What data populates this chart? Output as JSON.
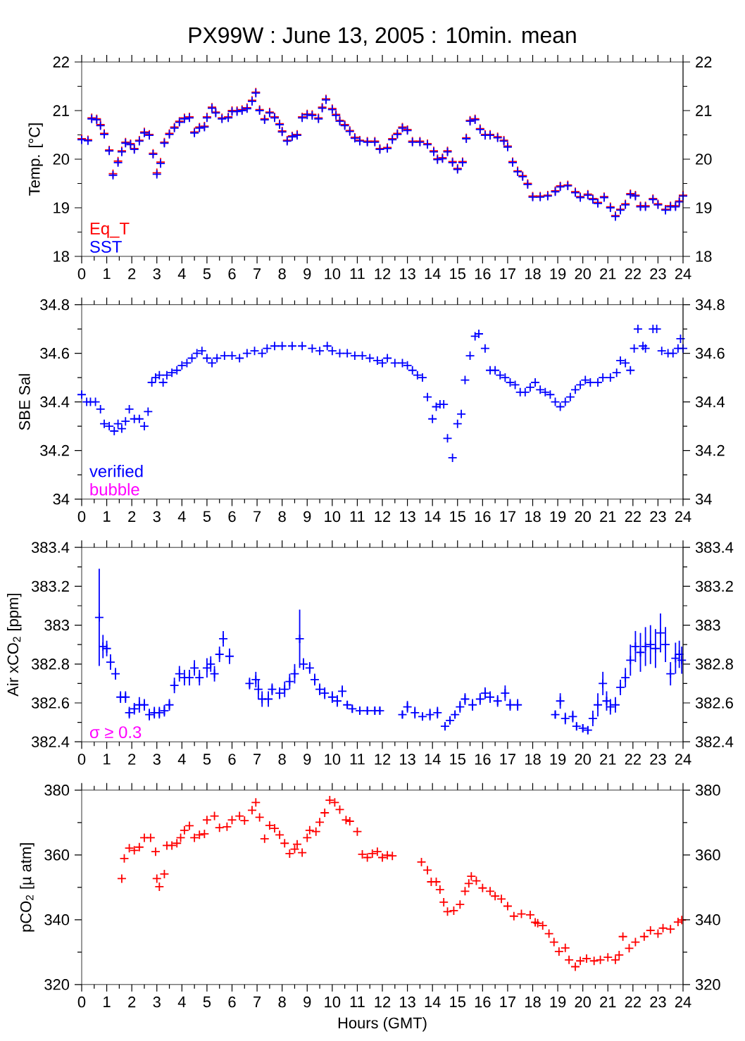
{
  "chart_data": [
    {
      "type": "scatter",
      "title": "PX99W : June 13, 2005 : 10min. mean",
      "ylabel": "Temp. [°C]",
      "marker": "cross",
      "legend": "bottom left",
      "xlim": [
        0,
        24
      ],
      "xticks": [
        0,
        1,
        2,
        3,
        4,
        5,
        6,
        7,
        8,
        9,
        10,
        11,
        12,
        13,
        14,
        15,
        16,
        17,
        18,
        19,
        20,
        21,
        22,
        23,
        24
      ],
      "ylim": [
        18,
        22
      ],
      "yticks": [
        18,
        19,
        20,
        21,
        22
      ],
      "y2lim": [
        18,
        22
      ],
      "y2ticks": [
        18,
        19,
        20,
        21,
        22
      ],
      "x": [
        0,
        0.25,
        0.4,
        0.6,
        0.75,
        0.9,
        1.1,
        1.25,
        1.45,
        1.6,
        1.75,
        1.95,
        2.1,
        2.3,
        2.5,
        2.7,
        2.85,
        3.0,
        3.15,
        3.3,
        3.5,
        3.7,
        3.9,
        4.1,
        4.3,
        4.5,
        4.7,
        4.9,
        5.0,
        5.2,
        5.35,
        5.6,
        5.85,
        6.0,
        6.2,
        6.4,
        6.6,
        6.8,
        6.95,
        7.1,
        7.3,
        7.5,
        7.7,
        7.9,
        8.0,
        8.2,
        8.4,
        8.6,
        8.8,
        9.0,
        9.2,
        9.45,
        9.6,
        9.75,
        10.0,
        10.15,
        10.3,
        10.5,
        10.7,
        10.9,
        11.1,
        11.4,
        11.7,
        11.9,
        12.2,
        12.4,
        12.6,
        12.8,
        13.0,
        13.2,
        13.5,
        13.8,
        14.05,
        14.2,
        14.4,
        14.6,
        14.8,
        15.0,
        15.2,
        15.35,
        15.5,
        15.7,
        15.9,
        16.1,
        16.3,
        16.6,
        16.85,
        17.0,
        17.2,
        17.4,
        17.6,
        17.8,
        18.0,
        18.3,
        18.6,
        18.9,
        19.1,
        19.4,
        19.7,
        19.9,
        20.2,
        20.4,
        20.6,
        20.85,
        21.1,
        21.3,
        21.5,
        21.7,
        21.9,
        22.1,
        22.3,
        22.5,
        22.8,
        23.0,
        23.3,
        23.5,
        23.7,
        23.85,
        24.0
      ],
      "series": [
        {
          "name": "Eq_T",
          "color": "#ff0000",
          "values": [
            20.42,
            20.4,
            20.85,
            20.83,
            20.71,
            20.53,
            20.19,
            19.7,
            19.96,
            20.17,
            20.35,
            20.32,
            20.22,
            20.39,
            20.56,
            20.51,
            20.12,
            19.72,
            19.94,
            20.35,
            20.53,
            20.66,
            20.78,
            20.85,
            20.87,
            20.56,
            20.66,
            20.68,
            20.87,
            21.07,
            20.97,
            20.85,
            20.87,
            21.0,
            21.0,
            21.02,
            21.06,
            21.21,
            21.38,
            21.02,
            20.83,
            20.97,
            20.87,
            20.73,
            20.58,
            20.39,
            20.48,
            20.51,
            20.87,
            20.93,
            20.92,
            20.85,
            21.07,
            21.24,
            21.04,
            20.92,
            20.8,
            20.71,
            20.59,
            20.45,
            20.39,
            20.37,
            20.37,
            20.22,
            20.24,
            20.42,
            20.53,
            20.66,
            20.61,
            20.37,
            20.37,
            20.32,
            20.17,
            20.01,
            20.03,
            20.17,
            19.95,
            19.81,
            19.95,
            20.44,
            20.8,
            20.83,
            20.63,
            20.51,
            20.51,
            20.46,
            20.39,
            20.27,
            19.95,
            19.76,
            19.66,
            19.5,
            19.24,
            19.24,
            19.26,
            19.35,
            19.45,
            19.47,
            19.33,
            19.23,
            19.28,
            19.19,
            19.11,
            19.23,
            19.02,
            18.84,
            18.97,
            19.08,
            19.29,
            19.26,
            19.04,
            19.04,
            19.19,
            19.08,
            18.97,
            19.04,
            19.04,
            19.14,
            19.26
          ]
        },
        {
          "name": "SST",
          "color": "#0000ff",
          "values": [
            20.4,
            20.38,
            20.83,
            20.81,
            20.69,
            20.51,
            20.17,
            19.67,
            19.93,
            20.15,
            20.33,
            20.3,
            20.2,
            20.37,
            20.54,
            20.49,
            20.1,
            19.69,
            19.91,
            20.33,
            20.51,
            20.64,
            20.76,
            20.83,
            20.85,
            20.54,
            20.64,
            20.66,
            20.85,
            21.05,
            20.95,
            20.83,
            20.85,
            20.98,
            20.98,
            21.0,
            21.04,
            21.19,
            21.36,
            21.0,
            20.81,
            20.95,
            20.85,
            20.71,
            20.56,
            20.37,
            20.46,
            20.49,
            20.85,
            20.91,
            20.9,
            20.83,
            21.05,
            21.22,
            21.02,
            20.9,
            20.78,
            20.69,
            20.57,
            20.43,
            20.37,
            20.35,
            20.35,
            20.2,
            20.22,
            20.4,
            20.51,
            20.64,
            20.59,
            20.35,
            20.35,
            20.3,
            20.15,
            19.99,
            20.01,
            20.15,
            19.93,
            19.79,
            19.93,
            20.42,
            20.78,
            20.81,
            20.61,
            20.49,
            20.49,
            20.44,
            20.37,
            20.25,
            19.93,
            19.74,
            19.64,
            19.48,
            19.22,
            19.22,
            19.24,
            19.33,
            19.43,
            19.45,
            19.31,
            19.21,
            19.26,
            19.17,
            19.09,
            19.21,
            19.0,
            18.82,
            18.95,
            19.06,
            19.27,
            19.24,
            19.02,
            19.02,
            19.17,
            19.06,
            18.95,
            19.02,
            19.02,
            19.12,
            19.24
          ]
        }
      ]
    },
    {
      "type": "scatter",
      "ylabel": "SBE Sal",
      "marker": "cross",
      "legend": "bottom left",
      "annotations": [
        "bubble"
      ],
      "xlim": [
        0,
        24
      ],
      "xticks": [
        0,
        1,
        2,
        3,
        4,
        5,
        6,
        7,
        8,
        9,
        10,
        11,
        12,
        13,
        14,
        15,
        16,
        17,
        18,
        19,
        20,
        21,
        22,
        23,
        24
      ],
      "ylim": [
        34,
        34.8
      ],
      "yticks": [
        34,
        34.2,
        34.4,
        34.6,
        34.8
      ],
      "y2lim": [
        34,
        34.8
      ],
      "y2ticks": [
        34,
        34.2,
        34.4,
        34.6,
        34.8
      ],
      "x": [
        0,
        0.2,
        0.35,
        0.55,
        0.75,
        0.9,
        1.1,
        1.3,
        1.45,
        1.6,
        1.75,
        1.9,
        2.1,
        2.3,
        2.5,
        2.65,
        2.8,
        2.95,
        3.1,
        3.25,
        3.4,
        3.6,
        3.8,
        4.0,
        4.2,
        4.4,
        4.6,
        4.8,
        5.0,
        5.2,
        5.4,
        5.7,
        6.0,
        6.3,
        6.6,
        6.9,
        7.2,
        7.4,
        7.7,
        8.0,
        8.4,
        8.8,
        9.2,
        9.5,
        9.8,
        10.0,
        10.3,
        10.6,
        10.9,
        11.2,
        11.5,
        11.8,
        12.0,
        12.2,
        12.5,
        12.8,
        13.0,
        13.2,
        13.4,
        13.6,
        13.8,
        14.0,
        14.15,
        14.3,
        14.45,
        14.6,
        14.8,
        15.0,
        15.15,
        15.3,
        15.5,
        15.7,
        15.85,
        16.1,
        16.3,
        16.5,
        16.7,
        16.9,
        17.1,
        17.3,
        17.5,
        17.7,
        17.9,
        18.1,
        18.3,
        18.5,
        18.7,
        18.9,
        19.1,
        19.3,
        19.5,
        19.7,
        19.9,
        20.1,
        20.3,
        20.6,
        20.8,
        21.1,
        21.35,
        21.5,
        21.7,
        21.9,
        22.05,
        22.2,
        22.4,
        22.5,
        22.8,
        22.95,
        23.15,
        23.4,
        23.6,
        23.8,
        23.9,
        24.0
      ],
      "series": [
        {
          "name": "verified",
          "color": "#0000ff",
          "values": [
            34.43,
            34.4,
            34.4,
            34.4,
            34.37,
            34.31,
            34.3,
            34.28,
            34.31,
            34.29,
            34.32,
            34.37,
            34.33,
            34.33,
            34.3,
            34.36,
            34.48,
            34.5,
            34.51,
            34.48,
            34.51,
            34.52,
            34.53,
            34.55,
            34.56,
            34.58,
            34.6,
            34.61,
            34.58,
            34.56,
            34.58,
            34.59,
            34.59,
            34.58,
            34.6,
            34.61,
            34.6,
            34.62,
            34.63,
            34.63,
            34.63,
            34.63,
            34.62,
            34.61,
            34.63,
            34.61,
            34.6,
            34.6,
            34.59,
            34.59,
            34.58,
            34.57,
            34.56,
            34.58,
            34.56,
            34.56,
            34.55,
            34.53,
            34.51,
            34.5,
            34.42,
            34.33,
            34.38,
            34.39,
            34.39,
            34.25,
            34.17,
            34.31,
            34.35,
            34.49,
            34.59,
            34.67,
            34.68,
            34.62,
            34.53,
            34.53,
            34.51,
            34.5,
            34.48,
            34.47,
            34.44,
            34.44,
            34.46,
            34.48,
            34.45,
            34.44,
            34.43,
            34.4,
            34.38,
            34.4,
            34.42,
            34.45,
            34.47,
            34.49,
            34.48,
            34.48,
            34.5,
            34.5,
            34.52,
            34.57,
            34.56,
            34.53,
            34.62,
            34.7,
            34.63,
            34.62,
            34.7,
            34.7,
            34.61,
            34.6,
            34.6,
            34.62,
            34.66,
            34.62
          ]
        }
      ]
    },
    {
      "type": "scatter",
      "ylabel": "Air xCO$_{2}$ [ppm]",
      "marker": "cross",
      "annotations": [
        "σ ≥ 0.3"
      ],
      "xlim": [
        0,
        24
      ],
      "xticks": [
        0,
        1,
        2,
        3,
        4,
        5,
        6,
        7,
        8,
        9,
        10,
        11,
        12,
        13,
        14,
        15,
        16,
        17,
        18,
        19,
        20,
        21,
        22,
        23,
        24
      ],
      "ylim": [
        382.4,
        383.4
      ],
      "yticks": [
        382.4,
        382.6,
        382.8,
        383,
        383.2,
        383.4
      ],
      "y2lim": [
        382.4,
        383.4
      ],
      "y2ticks": [
        382.4,
        382.6,
        382.8,
        383,
        383.2,
        383.4
      ],
      "x": [
        0.7,
        0.85,
        1.0,
        1.15,
        1.35,
        1.55,
        1.75,
        1.9,
        2.1,
        2.3,
        2.5,
        2.7,
        2.9,
        3.1,
        3.3,
        3.5,
        3.7,
        3.9,
        4.1,
        4.3,
        4.5,
        4.7,
        5.0,
        5.15,
        5.3,
        5.5,
        5.65,
        5.9,
        6.7,
        6.95,
        7.05,
        7.2,
        7.45,
        7.6,
        7.9,
        8.1,
        8.3,
        8.5,
        8.7,
        8.85,
        9.1,
        9.3,
        9.5,
        9.7,
        10.0,
        10.2,
        10.4,
        10.6,
        10.8,
        11.1,
        11.4,
        11.7,
        11.9,
        12.8,
        13.0,
        13.3,
        13.6,
        13.9,
        14.2,
        14.5,
        14.7,
        14.9,
        15.1,
        15.3,
        15.6,
        15.9,
        16.1,
        16.3,
        16.6,
        16.9,
        17.1,
        17.4,
        18.9,
        19.1,
        19.3,
        19.6,
        19.75,
        20.0,
        20.2,
        20.4,
        20.6,
        20.8,
        20.95,
        21.1,
        21.3,
        21.5,
        21.7,
        21.9,
        22.1,
        22.3,
        22.5,
        22.7,
        22.9,
        23.1,
        23.3,
        23.5,
        23.7,
        23.85,
        23.95
      ],
      "series": [
        {
          "color": "#0000ff",
          "values": [
            383.04,
            382.89,
            382.88,
            382.81,
            382.75,
            382.63,
            382.63,
            382.55,
            382.57,
            382.59,
            382.59,
            382.54,
            382.55,
            382.55,
            382.56,
            382.59,
            382.69,
            382.75,
            382.73,
            382.73,
            382.78,
            382.73,
            382.78,
            382.8,
            382.75,
            382.85,
            382.93,
            382.84,
            382.7,
            382.72,
            382.67,
            382.62,
            382.62,
            382.67,
            382.65,
            382.67,
            382.71,
            382.75,
            382.93,
            382.8,
            382.78,
            382.72,
            382.67,
            382.65,
            382.63,
            382.61,
            382.66,
            382.59,
            382.57,
            382.56,
            382.56,
            382.56,
            382.56,
            382.54,
            382.58,
            382.55,
            382.53,
            382.54,
            382.55,
            382.48,
            382.51,
            382.54,
            382.58,
            382.62,
            382.59,
            382.62,
            382.65,
            382.63,
            382.61,
            382.65,
            382.59,
            382.59,
            382.54,
            382.61,
            382.52,
            382.53,
            382.48,
            382.47,
            382.46,
            382.52,
            382.59,
            382.7,
            382.61,
            382.58,
            382.59,
            382.68,
            382.73,
            382.82,
            382.89,
            382.86,
            382.89,
            382.9,
            382.88,
            382.96,
            382.9,
            382.75,
            382.83,
            382.85,
            382.82
          ],
          "errors": [
            0.25,
            0.06,
            0.04,
            0.04,
            0.03,
            0.03,
            0.03,
            0.03,
            0.03,
            0.04,
            0.03,
            0.03,
            0.03,
            0.03,
            0.03,
            0.03,
            0.04,
            0.04,
            0.04,
            0.04,
            0.04,
            0.04,
            0.05,
            0.04,
            0.04,
            0.04,
            0.04,
            0.04,
            0.03,
            0.04,
            0.05,
            0.04,
            0.04,
            0.03,
            0.03,
            0.04,
            0.04,
            0.05,
            0.15,
            0.03,
            0.03,
            0.03,
            0.03,
            0.03,
            0.03,
            0.03,
            0.03,
            0.02,
            0.02,
            0.02,
            0.02,
            0.02,
            0.02,
            0.02,
            0.03,
            0.03,
            0.02,
            0.03,
            0.03,
            0.02,
            0.02,
            0.02,
            0.03,
            0.03,
            0.03,
            0.03,
            0.03,
            0.03,
            0.03,
            0.04,
            0.03,
            0.03,
            0.02,
            0.04,
            0.03,
            0.03,
            0.02,
            0.02,
            0.02,
            0.04,
            0.06,
            0.06,
            0.05,
            0.04,
            0.04,
            0.04,
            0.05,
            0.08,
            0.08,
            0.1,
            0.1,
            0.1,
            0.1,
            0.1,
            0.09,
            0.06,
            0.08,
            0.07,
            0.07
          ]
        }
      ]
    },
    {
      "type": "scatter",
      "xlabel": "Hours (GMT)",
      "ylabel": "pCO$_{2}$ [µ atm]",
      "marker": "cross",
      "xlim": [
        0,
        24
      ],
      "xticks": [
        0,
        1,
        2,
        3,
        4,
        5,
        6,
        7,
        8,
        9,
        10,
        11,
        12,
        13,
        14,
        15,
        16,
        17,
        18,
        19,
        20,
        21,
        22,
        23,
        24
      ],
      "ylim": [
        320,
        380
      ],
      "yticks": [
        320,
        340,
        360,
        380
      ],
      "y2lim": [
        320,
        380
      ],
      "y2ticks": [
        320,
        340,
        360,
        380
      ],
      "x": [
        1.6,
        1.7,
        1.9,
        2.1,
        2.3,
        2.5,
        2.75,
        2.95,
        3.0,
        3.1,
        3.3,
        3.4,
        3.6,
        3.8,
        3.95,
        4.1,
        4.3,
        4.5,
        4.7,
        4.9,
        5.0,
        5.3,
        5.5,
        5.8,
        6.0,
        6.3,
        6.5,
        6.8,
        6.95,
        7.1,
        7.3,
        7.5,
        7.7,
        7.9,
        8.1,
        8.3,
        8.5,
        8.6,
        8.8,
        9.0,
        9.1,
        9.35,
        9.5,
        9.7,
        9.9,
        10.1,
        10.3,
        10.55,
        10.7,
        11.0,
        11.2,
        11.4,
        11.6,
        11.8,
        12.0,
        12.2,
        12.4,
        13.56,
        13.8,
        13.95,
        14.15,
        14.3,
        14.45,
        14.6,
        14.85,
        15.1,
        15.3,
        15.45,
        15.55,
        15.75,
        16.0,
        16.3,
        16.5,
        16.75,
        17.0,
        17.25,
        17.55,
        17.9,
        18.1,
        18.2,
        18.4,
        18.65,
        18.85,
        19.05,
        19.3,
        19.45,
        19.7,
        19.9,
        20.15,
        20.45,
        20.7,
        21.0,
        21.3,
        21.45,
        21.6,
        21.85,
        22.1,
        22.45,
        22.7,
        23.0,
        23.2,
        23.5,
        23.8,
        23.95
      ],
      "series": [
        {
          "color": "#ff0000",
          "values": [
            352.7,
            358.9,
            362.1,
            361.4,
            362.4,
            365.3,
            365.3,
            361.0,
            352.7,
            350.2,
            354.1,
            362.9,
            362.9,
            363.6,
            365.3,
            367.6,
            369.0,
            365.3,
            366.2,
            366.5,
            370.8,
            372.0,
            368.4,
            368.7,
            370.8,
            372.0,
            370.6,
            373.8,
            376.2,
            371.6,
            365.0,
            369.1,
            368.2,
            366.2,
            363.6,
            360.4,
            361.8,
            363.3,
            360.7,
            365.3,
            367.6,
            367.2,
            370.1,
            373.0,
            376.9,
            376.2,
            374.0,
            370.8,
            370.4,
            367.2,
            360.2,
            359.2,
            360.4,
            361.0,
            359.2,
            359.9,
            359.7,
            357.8,
            355.3,
            351.7,
            351.7,
            349.3,
            345.4,
            342.5,
            342.8,
            344.7,
            348.8,
            351.2,
            353.4,
            352.0,
            349.8,
            348.8,
            347.3,
            346.4,
            344.2,
            341.1,
            341.8,
            341.5,
            339.2,
            338.9,
            338.2,
            335.7,
            333.1,
            330.2,
            331.3,
            327.6,
            325.5,
            327.3,
            328.0,
            327.3,
            327.6,
            328.4,
            327.6,
            329.1,
            334.8,
            331.2,
            333.1,
            334.8,
            336.7,
            335.7,
            337.4,
            337.1,
            339.3,
            339.9
          ]
        }
      ]
    }
  ]
}
